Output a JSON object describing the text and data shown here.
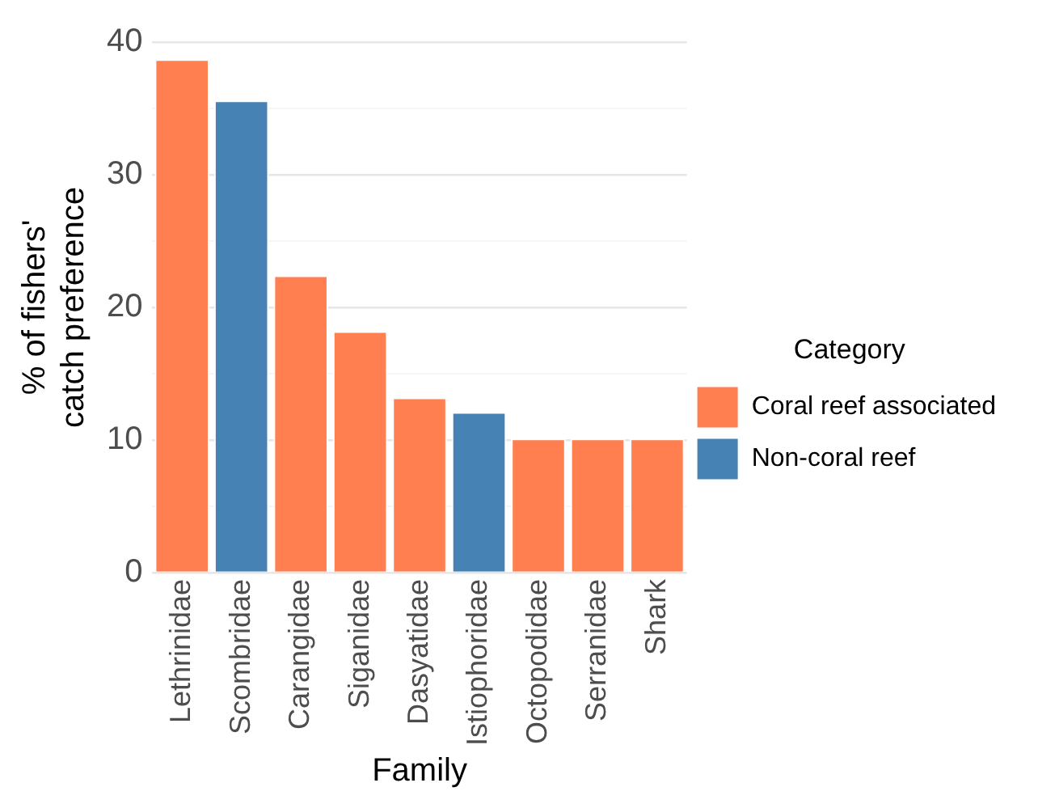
{
  "chart_data": {
    "type": "bar",
    "xlabel": "Family",
    "ylabel": "% of fishers' catch preference",
    "legend_title": "Category",
    "categories": [
      "Lethrinidae",
      "Scombridae",
      "Carangidae",
      "Siganidae",
      "Dasyatidae",
      "Istiophoridae",
      "Octopodidae",
      "Serranidae",
      "Shark"
    ],
    "series": [
      {
        "name": "Coral reef associated",
        "color": "#ff7f50",
        "values": [
          38.7,
          null,
          22.4,
          18.2,
          13.2,
          null,
          10.1,
          10.1,
          10.1
        ]
      },
      {
        "name": "Non-coral reef",
        "color": "#4682b4",
        "values": [
          null,
          35.6,
          null,
          null,
          null,
          12.1,
          null,
          null,
          null
        ]
      }
    ],
    "ylim": [
      0,
      40
    ],
    "yticks": [
      0,
      {
        "value": 5,
        "label": null
      },
      10,
      {
        "value": 15,
        "label": null
      },
      20,
      {
        "value": 25,
        "label": null
      },
      30,
      {
        "value": 35,
        "label": null
      },
      40
    ],
    "grid": "y",
    "legend": "right"
  }
}
